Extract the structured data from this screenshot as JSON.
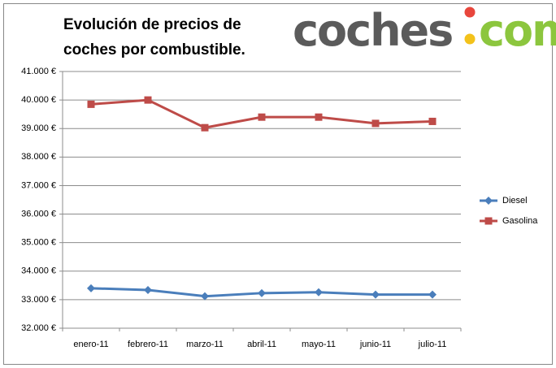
{
  "logo": {
    "left": "coches",
    "right": "com"
  },
  "chart_data": {
    "type": "line",
    "title": [
      "Evolución de precios de",
      "coches por combustible."
    ],
    "categories": [
      "enero-11",
      "febrero-11",
      "marzo-11",
      "abril-11",
      "mayo-11",
      "junio-11",
      "julio-11"
    ],
    "series": [
      {
        "name": "Diesel",
        "color": "#4a7ebb",
        "marker": "diamond",
        "values": [
          33400,
          33340,
          33120,
          33230,
          33260,
          33180,
          33180
        ]
      },
      {
        "name": "Gasolina",
        "color": "#be4b48",
        "marker": "square",
        "values": [
          39850,
          40000,
          39030,
          39400,
          39400,
          39180,
          39250
        ]
      }
    ],
    "ylim": [
      32000,
      41000
    ],
    "yticks": [
      {
        "value": 32000,
        "label": "32.000 €"
      },
      {
        "value": 33000,
        "label": "33.000 €"
      },
      {
        "value": 34000,
        "label": "34.000 €"
      },
      {
        "value": 35000,
        "label": "35.000 €"
      },
      {
        "value": 36000,
        "label": "36.000 €"
      },
      {
        "value": 37000,
        "label": "37.000 €"
      },
      {
        "value": 38000,
        "label": "38.000 €"
      },
      {
        "value": 39000,
        "label": "39.000 €"
      },
      {
        "value": 40000,
        "label": "40.000 €"
      },
      {
        "value": 41000,
        "label": "41.000 €"
      }
    ],
    "grid": true,
    "legend": "right"
  }
}
